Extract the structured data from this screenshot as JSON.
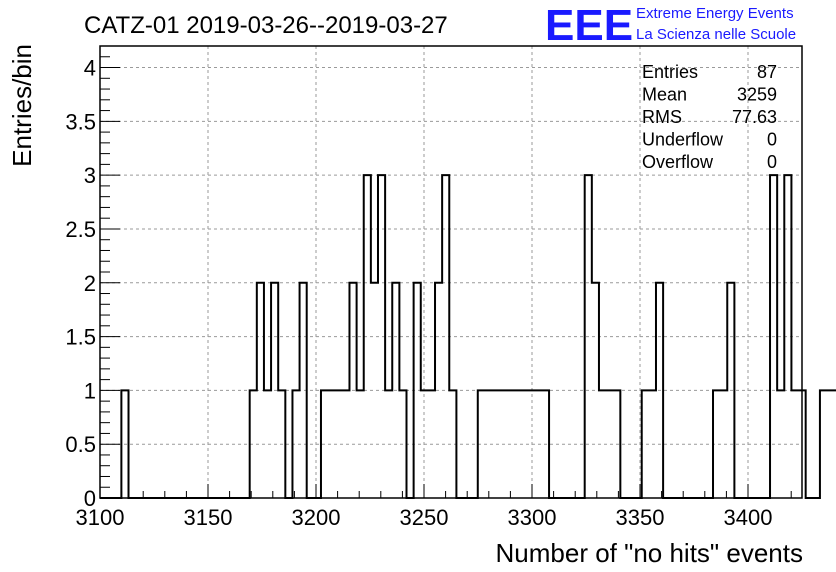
{
  "chart_data": {
    "type": "bar",
    "title": "CATZ-01 2019-03-26--2019-03-27",
    "xlabel": "Number of \"no hits\" events",
    "ylabel": "Entries/bin",
    "xlim": [
      3100,
      3425
    ],
    "ylim": [
      0,
      4.2
    ],
    "grid": true,
    "bin_width": 3.3,
    "bin_start": 3100,
    "values": [
      0,
      0,
      0,
      1,
      0,
      0,
      0,
      0,
      0,
      0,
      0,
      0,
      0,
      0,
      0,
      0,
      0,
      0,
      0,
      0,
      0,
      1,
      2,
      1,
      2,
      1,
      0,
      1,
      2,
      0,
      0,
      1,
      1,
      1,
      1,
      2,
      1,
      3,
      2,
      3,
      1,
      2,
      1,
      0,
      2,
      1,
      1,
      2,
      3,
      1,
      0,
      0,
      0,
      1,
      1,
      1,
      1,
      1,
      1,
      1,
      1,
      1,
      1,
      0,
      0,
      0,
      0,
      0,
      3,
      2,
      1,
      1,
      1,
      0,
      0,
      0,
      1,
      1,
      2,
      0,
      0,
      0,
      0,
      0,
      0,
      0,
      1,
      1,
      2,
      0,
      0,
      0,
      0,
      0,
      3,
      1,
      3,
      1,
      1,
      0,
      0,
      1,
      1,
      1,
      1,
      2,
      1,
      0,
      0,
      1,
      1,
      1,
      1,
      1,
      0,
      0,
      0,
      0,
      0,
      0,
      0,
      0,
      0,
      0,
      0,
      0,
      0,
      0,
      0,
      0,
      0,
      0,
      0,
      0,
      0,
      0,
      0,
      0,
      0,
      0,
      0,
      0,
      0,
      0,
      0,
      0,
      0,
      0,
      0,
      0,
      0,
      0,
      0,
      0,
      0,
      0,
      0,
      0,
      0,
      0,
      0,
      0,
      0,
      0,
      0,
      0,
      0,
      0
    ],
    "x_ticks": [
      "3100",
      "3150",
      "3200",
      "3250",
      "3300",
      "3350",
      "3400"
    ],
    "y_ticks": [
      "0",
      "0.5",
      "1",
      "1.5",
      "2",
      "2.5",
      "3",
      "3.5",
      "4"
    ],
    "stats": [
      {
        "label": "Entries",
        "value": "87"
      },
      {
        "label": "Mean",
        "value": "3259"
      },
      {
        "label": "RMS",
        "value": "77.63"
      },
      {
        "label": "Underflow",
        "value": "0"
      },
      {
        "label": "Overflow",
        "value": "0"
      }
    ]
  },
  "logo": {
    "mark": "EEE",
    "line1": "Extreme Energy Events",
    "line2": "La Scienza nelle Scuole",
    "color": "#1a1aff"
  }
}
